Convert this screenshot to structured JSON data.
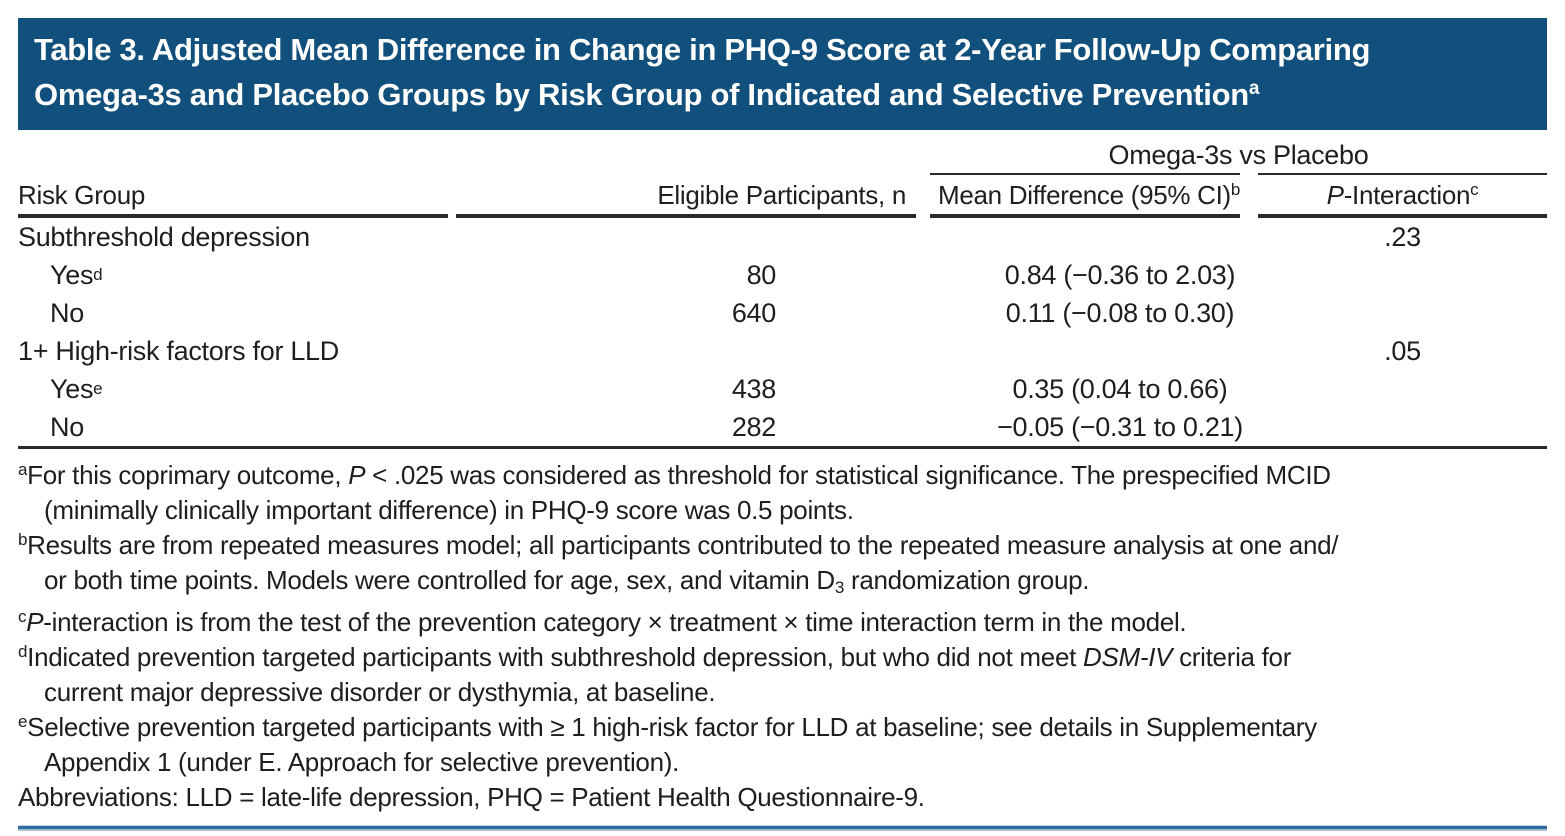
{
  "colors": {
    "header_bg": "#11507D",
    "title_text": "#FFFFFF",
    "table_rule": "#2A2A2B",
    "bottom_rule_blue": "#2E6B9E",
    "body_text": "#1E1E1F"
  },
  "title": {
    "line1": "Table 3. Adjusted Mean Difference in Change in PHQ-9 Score at 2-Year Follow-Up Comparing",
    "line2": "Omega-3s and Placebo Groups by Risk Group of Indicated and Selective Prevention",
    "marker": "a"
  },
  "table": {
    "spanner": "Omega-3s vs Placebo",
    "headers": {
      "risk_group": "Risk Group",
      "eligible": "Eligible Participants, n",
      "mean_diff": "Mean Difference (95% CI)",
      "mean_diff_marker": "b",
      "p_prefix": "P",
      "p_rest": "-Interaction",
      "p_marker": "c"
    },
    "rows": [
      {
        "label": "Subthreshold depression",
        "marker": "",
        "n": "",
        "mean_diff": "",
        "p": ".23"
      },
      {
        "label": "Yes",
        "marker": "d",
        "n": "80",
        "mean_diff": "0.84 (−0.36 to 2.03)",
        "p": ""
      },
      {
        "label": "No",
        "marker": "",
        "n": "640",
        "mean_diff": "0.11 (−0.08 to 0.30)",
        "p": ""
      },
      {
        "label": "1+ High-risk factors for LLD",
        "marker": "",
        "n": "",
        "mean_diff": "",
        "p": ".05"
      },
      {
        "label": "Yes",
        "marker": "e",
        "n": "438",
        "mean_diff": "0.35 (0.04 to 0.66)",
        "p": ""
      },
      {
        "label": "No",
        "marker": "",
        "n": "282",
        "mean_diff": "−0.05 (−0.31 to 0.21)",
        "p": ""
      }
    ]
  },
  "footnotes": [
    {
      "marker": "a",
      "lines": [
        {
          "segments": [
            {
              "t": "For this coprimary outcome, "
            },
            {
              "t": "P"
            },
            {
              "t": " < .025 was considered as threshold for statistical significance. The prespecified MCID"
            }
          ]
        },
        {
          "segments": [
            {
              "t": "(minimally clinically important difference) in PHQ-9 score was 0.5 points."
            }
          ]
        }
      ]
    },
    {
      "marker": "b",
      "lines": [
        {
          "segments": [
            {
              "t": "Results are from repeated measures model; all participants contributed to the repeated measure analysis at one and/"
            }
          ]
        },
        {
          "segments": [
            {
              "t": "or both time points. Models were controlled for age, sex, and vitamin D"
            },
            {
              "t": "3"
            },
            {
              "t": " randomization group."
            }
          ]
        }
      ]
    },
    {
      "marker": "c",
      "lines": [
        {
          "segments": [
            {
              "t": "P"
            },
            {
              "t": "-interaction is from the test of the prevention category × treatment × time interaction term in the model."
            }
          ]
        }
      ]
    },
    {
      "marker": "d",
      "lines": [
        {
          "segments": [
            {
              "t": "Indicated prevention targeted participants with subthreshold depression, but who did not meet "
            },
            {
              "t": "DSM-IV"
            },
            {
              "t": " criteria for"
            }
          ]
        },
        {
          "segments": [
            {
              "t": "current major depressive disorder or dysthymia, at baseline."
            }
          ]
        }
      ]
    },
    {
      "marker": "e",
      "lines": [
        {
          "segments": [
            {
              "t": "Selective prevention targeted participants with ≥ 1 high-risk factor for LLD at baseline; see details in Supplementary"
            }
          ]
        },
        {
          "segments": [
            {
              "t": "Appendix 1 (under E. Approach for selective prevention)."
            }
          ]
        }
      ]
    },
    {
      "marker": "",
      "lines": [
        {
          "segments": [
            {
              "t": "Abbreviations: LLD = late-life depression, PHQ = Patient Health Questionnaire-9."
            }
          ]
        }
      ]
    }
  ]
}
